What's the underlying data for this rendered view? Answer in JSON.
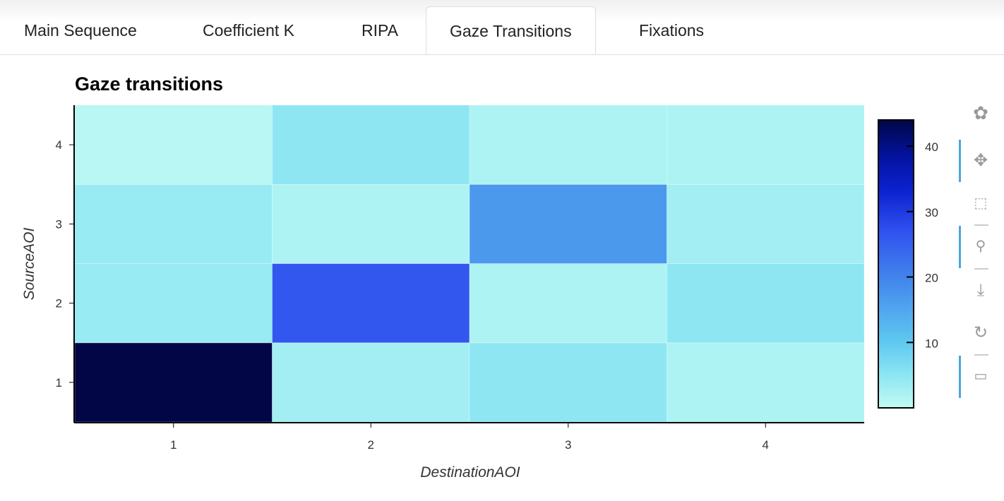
{
  "tabs": [
    {
      "label": "Main Sequence"
    },
    {
      "label": "Coefficient K"
    },
    {
      "label": "RIPA"
    },
    {
      "label": "Gaze Transitions",
      "active": true
    },
    {
      "label": "Fixations"
    }
  ],
  "toolbar": [
    "bokeh-logo-icon",
    "pan-icon",
    "box-zoom-icon",
    "wheel-zoom-icon",
    "save-icon",
    "reset-icon",
    "hover-icon"
  ],
  "chart_data": {
    "type": "heatmap",
    "title": "Gaze transitions",
    "xlabel": "DestinationAOI",
    "ylabel": "SourceAOI",
    "x_categories": [
      "1",
      "2",
      "3",
      "4"
    ],
    "y_categories": [
      "1",
      "2",
      "3",
      "4"
    ],
    "values_by_source": {
      "1": [
        44,
        3,
        5,
        2
      ],
      "2": [
        4,
        26,
        2,
        5
      ],
      "3": [
        4,
        2,
        17,
        3
      ],
      "4": [
        1,
        5,
        2,
        2
      ]
    },
    "colorbar": {
      "range": [
        0,
        44
      ],
      "ticks": [
        "10",
        "20",
        "30",
        "40"
      ],
      "colormap": "light cyan to dark navy"
    }
  }
}
